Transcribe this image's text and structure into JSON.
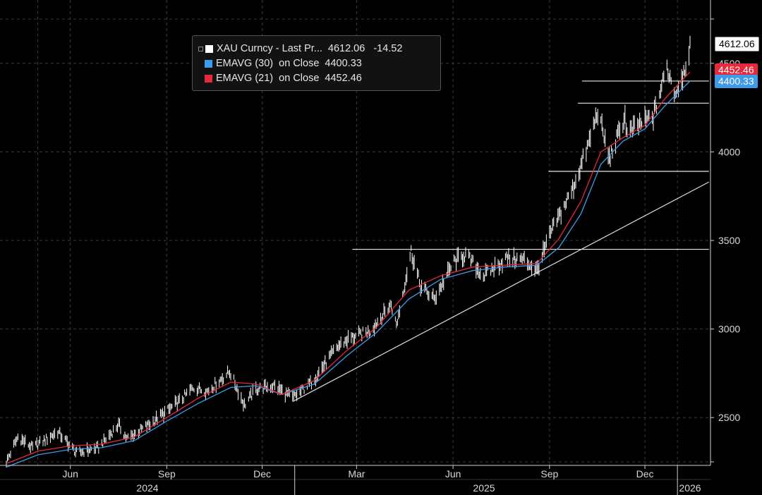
{
  "legend": {
    "rows": [
      {
        "name": "XAU Curncy - Last Pr...",
        "value": "4612.06",
        "change": "-14.52",
        "color": "#ffffff"
      },
      {
        "name": "EMAVG (30)  on Close",
        "value": "4400.33",
        "change": "",
        "color": "#3d9be9"
      },
      {
        "name": "EMAVG (21)  on Close",
        "value": "4452.46",
        "change": "",
        "color": "#e8283c"
      }
    ]
  },
  "tags": {
    "price": "4612.06",
    "ema21": "4452.46",
    "ema30": "4400.33"
  },
  "chart_data": {
    "type": "line",
    "ylim": [
      2250,
      4800
    ],
    "y_ticks": [
      2500,
      3000,
      3500,
      4000,
      4500
    ],
    "x_tick_labels": [
      "Jun",
      "Sep",
      "Dec",
      "Mar",
      "Jun",
      "Sep",
      "Dec"
    ],
    "year_labels": [
      "2024",
      "2025",
      "2026"
    ],
    "colors": {
      "price": "#ffffff",
      "ema30": "#3d9be9",
      "ema21": "#e8283c",
      "background": "#000000"
    },
    "grid": "dashed vertical and horizontal",
    "series": [
      {
        "name": "XAU Curncy - Last Pr...",
        "dates": [
          "2024-04-01",
          "2024-04-12",
          "2024-04-26",
          "2024-05-20",
          "2024-06-07",
          "2024-06-28",
          "2024-07-17",
          "2024-07-25",
          "2024-08-15",
          "2024-09-13",
          "2024-09-26",
          "2024-10-10",
          "2024-10-31",
          "2024-11-14",
          "2024-11-25",
          "2024-12-12",
          "2024-12-30",
          "2025-01-17",
          "2025-02-11",
          "2025-02-20",
          "2025-03-14",
          "2025-04-03",
          "2025-04-08",
          "2025-04-22",
          "2025-05-01",
          "2025-05-14",
          "2025-06-02",
          "2025-06-13",
          "2025-06-30",
          "2025-07-22",
          "2025-08-08",
          "2025-08-20",
          "2025-09-02",
          "2025-09-23",
          "2025-10-08",
          "2025-10-17",
          "2025-10-28",
          "2025-11-12",
          "2025-11-14",
          "2025-11-27",
          "2025-12-09",
          "2025-12-22",
          "2025-12-30",
          "2026-01-07",
          "2026-01-13"
        ],
        "values": [
          2250,
          2390,
          2330,
          2420,
          2300,
          2330,
          2460,
          2380,
          2460,
          2590,
          2670,
          2650,
          2760,
          2570,
          2660,
          2680,
          2610,
          2700,
          2900,
          2940,
          2990,
          3140,
          3020,
          3440,
          3240,
          3170,
          3380,
          3420,
          3300,
          3400,
          3390,
          3330,
          3540,
          3790,
          4040,
          4230,
          3960,
          4200,
          4100,
          4160,
          4200,
          4480,
          4330,
          4450,
          4600
        ]
      },
      {
        "name": "EMAVG (30)  on Close",
        "dates": [
          "2024-04-01",
          "2024-05-01",
          "2024-06-01",
          "2024-07-01",
          "2024-08-01",
          "2024-09-01",
          "2024-10-01",
          "2024-11-01",
          "2024-11-25",
          "2024-12-20",
          "2025-01-20",
          "2025-02-20",
          "2025-03-20",
          "2025-04-20",
          "2025-05-20",
          "2025-06-20",
          "2025-07-20",
          "2025-08-20",
          "2025-09-10",
          "2025-10-01",
          "2025-10-20",
          "2025-11-10",
          "2025-12-01",
          "2025-12-20",
          "2026-01-13"
        ],
        "values": [
          2220,
          2290,
          2320,
          2330,
          2370,
          2480,
          2580,
          2670,
          2680,
          2630,
          2690,
          2850,
          2980,
          3170,
          3280,
          3330,
          3350,
          3360,
          3460,
          3650,
          3930,
          4060,
          4130,
          4260,
          4400
        ]
      },
      {
        "name": "EMAVG (21)  on Close",
        "dates": [
          "2024-04-01",
          "2024-05-01",
          "2024-06-01",
          "2024-07-01",
          "2024-08-01",
          "2024-09-01",
          "2024-10-01",
          "2024-11-01",
          "2024-11-25",
          "2024-12-20",
          "2025-01-20",
          "2025-02-20",
          "2025-03-20",
          "2025-04-20",
          "2025-05-20",
          "2025-06-20",
          "2025-07-20",
          "2025-08-20",
          "2025-09-10",
          "2025-10-01",
          "2025-10-20",
          "2025-11-10",
          "2025-12-01",
          "2025-12-20",
          "2026-01-13"
        ],
        "values": [
          2240,
          2310,
          2340,
          2350,
          2390,
          2500,
          2610,
          2700,
          2690,
          2630,
          2710,
          2880,
          3010,
          3220,
          3300,
          3350,
          3360,
          3370,
          3510,
          3720,
          4000,
          4080,
          4150,
          4300,
          4452
        ]
      }
    ],
    "annotations": [
      {
        "type": "horizontal_line",
        "y": 4400,
        "from": "2025-10-02",
        "to": "2026-01-31"
      },
      {
        "type": "horizontal_line",
        "y": 4275,
        "from": "2025-09-28",
        "to": "2026-01-31"
      },
      {
        "type": "horizontal_line",
        "y": 3890,
        "from": "2025-08-31",
        "to": "2026-01-31"
      },
      {
        "type": "horizontal_line",
        "y": 3450,
        "from": "2025-02-25",
        "to": "2026-01-31"
      },
      {
        "type": "trend_line",
        "from": {
          "date": "2024-12-30",
          "y": 2590
        },
        "to": {
          "date": "2026-01-31",
          "y": 3830
        }
      }
    ]
  }
}
